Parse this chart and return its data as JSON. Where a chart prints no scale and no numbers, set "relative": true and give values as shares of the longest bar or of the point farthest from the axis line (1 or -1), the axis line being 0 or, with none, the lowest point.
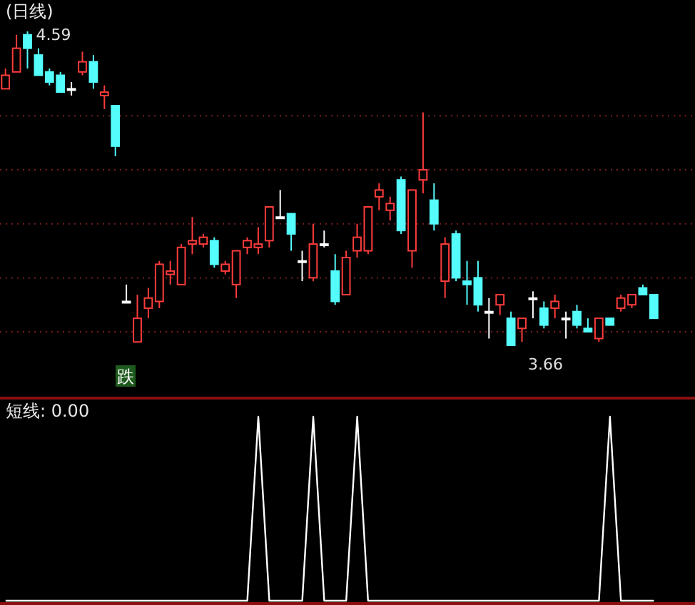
{
  "chart_data": [
    {
      "type": "candlestick",
      "title": "(日线)",
      "categories": [
        null,
        null,
        null,
        null,
        null,
        null,
        null,
        null,
        null,
        null,
        null,
        null,
        null,
        null,
        null,
        null,
        null,
        null,
        null,
        null,
        null,
        null,
        null,
        null,
        null,
        null,
        null,
        null,
        null,
        null,
        null,
        null,
        null,
        null,
        null,
        null,
        null,
        null,
        null,
        null,
        null,
        null,
        null,
        null,
        null,
        null,
        null,
        null,
        null,
        null,
        null,
        null,
        null,
        null,
        null,
        null,
        null,
        null,
        null,
        null
      ],
      "ohlc": [
        [
          4.42,
          4.48,
          4.42,
          4.46
        ],
        [
          4.47,
          4.58,
          4.47,
          4.54
        ],
        [
          4.58,
          4.59,
          4.48,
          4.54
        ],
        [
          4.52,
          4.54,
          4.46,
          4.46
        ],
        [
          4.47,
          4.48,
          4.43,
          4.44
        ],
        [
          4.46,
          4.47,
          4.41,
          4.41
        ],
        [
          4.42,
          4.44,
          4.4,
          4.42
        ],
        [
          4.47,
          4.53,
          4.46,
          4.5
        ],
        [
          4.5,
          4.52,
          4.42,
          4.44
        ],
        [
          4.4,
          4.43,
          4.36,
          4.41
        ],
        [
          4.37,
          4.37,
          4.22,
          4.25
        ],
        [
          3.79,
          3.84,
          3.79,
          3.79
        ],
        [
          3.67,
          3.81,
          3.67,
          3.74
        ],
        [
          3.77,
          3.83,
          3.74,
          3.8
        ],
        [
          3.79,
          3.91,
          3.77,
          3.9
        ],
        [
          3.87,
          3.91,
          3.84,
          3.88
        ],
        [
          3.84,
          3.96,
          3.84,
          3.95
        ],
        [
          3.96,
          4.04,
          3.93,
          3.97
        ],
        [
          3.96,
          3.99,
          3.95,
          3.98
        ],
        [
          3.97,
          3.98,
          3.89,
          3.9
        ],
        [
          3.88,
          3.91,
          3.87,
          3.9
        ],
        [
          3.84,
          3.94,
          3.8,
          3.94
        ],
        [
          3.95,
          3.98,
          3.93,
          3.97
        ],
        [
          3.95,
          4.01,
          3.93,
          3.96
        ],
        [
          3.97,
          4.07,
          3.95,
          4.07
        ],
        [
          4.04,
          4.12,
          4.04,
          4.04
        ],
        [
          4.05,
          4.05,
          3.94,
          3.99
        ],
        [
          3.91,
          3.94,
          3.85,
          3.91
        ],
        [
          3.86,
          4.02,
          3.85,
          3.96
        ],
        [
          3.96,
          4.0,
          3.95,
          3.96
        ],
        [
          3.88,
          3.93,
          3.78,
          3.79
        ],
        [
          3.81,
          3.94,
          3.81,
          3.92
        ],
        [
          3.94,
          4.02,
          3.92,
          3.98
        ],
        [
          3.94,
          4.07,
          3.93,
          4.07
        ],
        [
          4.1,
          4.14,
          4.06,
          4.12
        ],
        [
          4.06,
          4.1,
          4.03,
          4.08
        ],
        [
          4.15,
          4.16,
          3.99,
          4.0
        ],
        [
          3.94,
          4.12,
          3.89,
          4.12
        ],
        [
          4.15,
          4.35,
          4.11,
          4.18
        ],
        [
          4.09,
          4.14,
          4.0,
          4.02
        ],
        [
          3.85,
          3.98,
          3.8,
          3.96
        ],
        [
          3.99,
          4.0,
          3.85,
          3.86
        ],
        [
          3.85,
          3.91,
          3.78,
          3.84
        ],
        [
          3.86,
          3.91,
          3.76,
          3.78
        ],
        [
          3.76,
          3.8,
          3.68,
          3.76
        ],
        [
          3.78,
          3.81,
          3.75,
          3.81
        ],
        [
          3.74,
          3.76,
          3.66,
          3.66
        ],
        [
          3.71,
          3.74,
          3.67,
          3.74
        ],
        [
          3.8,
          3.82,
          3.74,
          3.8
        ],
        [
          3.77,
          3.79,
          3.71,
          3.72
        ],
        [
          3.77,
          3.81,
          3.74,
          3.79
        ],
        [
          3.74,
          3.76,
          3.68,
          3.74
        ],
        [
          3.76,
          3.78,
          3.71,
          3.72
        ],
        [
          3.71,
          3.74,
          3.7,
          3.7
        ],
        [
          3.68,
          3.74,
          3.67,
          3.74
        ],
        [
          3.74,
          3.74,
          3.72,
          3.72
        ],
        [
          3.77,
          3.81,
          3.76,
          3.8
        ],
        [
          3.78,
          3.81,
          3.77,
          3.81
        ],
        [
          3.83,
          3.84,
          3.81,
          3.81
        ],
        [
          3.81,
          3.81,
          3.74,
          3.74
        ]
      ],
      "colors": [
        "#ff3c3c",
        "#ff3c3c",
        "#54fcfc",
        "#54fcfc",
        "#54fcfc",
        "#54fcfc",
        "#ffffff",
        "#ff3c3c",
        "#54fcfc",
        "#ff3c3c",
        "#54fcfc",
        "#ffffff",
        "#ff3c3c",
        "#ff3c3c",
        "#ff3c3c",
        "#ff3c3c",
        "#ff3c3c",
        "#ff3c3c",
        "#ff3c3c",
        "#54fcfc",
        "#ff3c3c",
        "#ff3c3c",
        "#ff3c3c",
        "#ff3c3c",
        "#ff3c3c",
        "#ffffff",
        "#54fcfc",
        "#ffffff",
        "#ff3c3c",
        "#ffffff",
        "#54fcfc",
        "#ff3c3c",
        "#ff3c3c",
        "#ff3c3c",
        "#ff3c3c",
        "#ff3c3c",
        "#54fcfc",
        "#ff3c3c",
        "#ff3c3c",
        "#54fcfc",
        "#ff3c3c",
        "#54fcfc",
        "#54fcfc",
        "#54fcfc",
        "#ffffff",
        "#ff3c3c",
        "#54fcfc",
        "#ff3c3c",
        "#ffffff",
        "#54fcfc",
        "#ff3c3c",
        "#ffffff",
        "#54fcfc",
        "#54fcfc",
        "#ff3c3c",
        "#54fcfc",
        "#ff3c3c",
        "#ff3c3c",
        "#54fcfc",
        "#54fcfc"
      ],
      "yticks": [
        {
          "value": 4.34,
          "label": null
        },
        {
          "value": 4.18,
          "label": null
        },
        {
          "value": 4.02,
          "label": null
        },
        {
          "value": 3.86,
          "label": null
        },
        {
          "value": 3.7,
          "label": null
        }
      ],
      "grid": "y",
      "annotations": [
        "4.59",
        "3.66",
        "跌"
      ]
    },
    {
      "type": "line",
      "title": "短线: 0.00",
      "relative": true,
      "categories": [
        null,
        null,
        null,
        null,
        null,
        null,
        null,
        null,
        null,
        null,
        null,
        null,
        null,
        null,
        null,
        null,
        null,
        null,
        null,
        null,
        null,
        null,
        null,
        null,
        null,
        null,
        null,
        null,
        null,
        null,
        null,
        null,
        null,
        null,
        null,
        null,
        null,
        null,
        null,
        null,
        null,
        null,
        null,
        null,
        null,
        null,
        null,
        null,
        null,
        null,
        null,
        null,
        null,
        null,
        null,
        null,
        null,
        null,
        null,
        null
      ],
      "series": [
        {
          "color": "#ffffff",
          "values": [
            0,
            0,
            0,
            0,
            0,
            0,
            0,
            0,
            0,
            0,
            0,
            0,
            0,
            0,
            0,
            0,
            0,
            0,
            0,
            0,
            0,
            0,
            0,
            1,
            0,
            0,
            0,
            0,
            1,
            0,
            0,
            0,
            1,
            0,
            0,
            0,
            0,
            0,
            0,
            0,
            0,
            0,
            0,
            0,
            0,
            0,
            0,
            0,
            0,
            0,
            0,
            0,
            0,
            0,
            0,
            1,
            0,
            0,
            0,
            0
          ]
        }
      ]
    }
  ]
}
